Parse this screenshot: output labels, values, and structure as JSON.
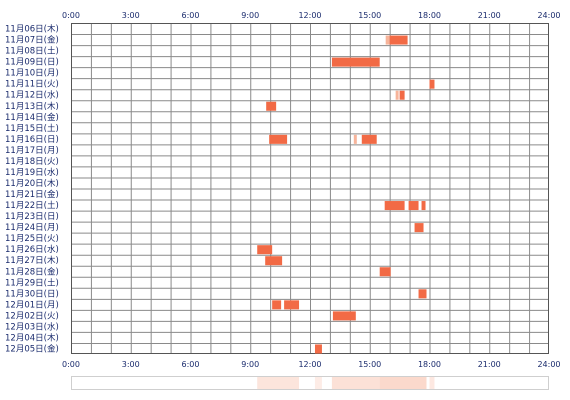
{
  "chart_data": {
    "type": "heatmap",
    "x_ticks": [
      "0:00",
      "3:00",
      "6:00",
      "9:00",
      "12:00",
      "15:00",
      "18:00",
      "21:00",
      "24:00"
    ],
    "xlim": [
      0,
      24
    ],
    "rows": [
      "11月06日(木)",
      "11月07日(金)",
      "11月08日(土)",
      "11月09日(日)",
      "11月10日(月)",
      "11月11日(火)",
      "11月12日(水)",
      "11月13日(木)",
      "11月14日(金)",
      "11月15日(土)",
      "11月16日(日)",
      "11月17日(月)",
      "11月18日(火)",
      "11月19日(水)",
      "11月20日(木)",
      "11月21日(金)",
      "11月22日(土)",
      "11月23日(日)",
      "11月24日(月)",
      "11月25日(火)",
      "11月26日(水)",
      "11月27日(木)",
      "11月28日(金)",
      "11月29日(土)",
      "11月30日(日)",
      "12月01日(月)",
      "12月02日(火)",
      "12月03日(水)",
      "12月04日(木)",
      "12月05日(金)"
    ],
    "grid": true,
    "segments": [
      {
        "row": 1,
        "start": 15.8,
        "end": 16.0,
        "color": "#f7b49a"
      },
      {
        "row": 1,
        "start": 16.0,
        "end": 16.9,
        "color": "#f26a45"
      },
      {
        "row": 3,
        "start": 13.1,
        "end": 15.5,
        "color": "#f26a45"
      },
      {
        "row": 5,
        "start": 18.0,
        "end": 18.25,
        "color": "#f26a45"
      },
      {
        "row": 6,
        "start": 16.3,
        "end": 16.45,
        "color": "#f7b49a"
      },
      {
        "row": 6,
        "start": 16.5,
        "end": 16.75,
        "color": "#f26a45"
      },
      {
        "row": 7,
        "start": 9.8,
        "end": 10.3,
        "color": "#f26a45"
      },
      {
        "row": 10,
        "start": 9.95,
        "end": 10.85,
        "color": "#f26a45"
      },
      {
        "row": 10,
        "start": 14.2,
        "end": 14.35,
        "color": "#f7b49a"
      },
      {
        "row": 10,
        "start": 14.6,
        "end": 15.35,
        "color": "#f26a45"
      },
      {
        "row": 16,
        "start": 15.75,
        "end": 16.75,
        "color": "#f26a45"
      },
      {
        "row": 16,
        "start": 16.95,
        "end": 17.45,
        "color": "#f26a45"
      },
      {
        "row": 16,
        "start": 17.6,
        "end": 17.8,
        "color": "#f26a45"
      },
      {
        "row": 18,
        "start": 17.25,
        "end": 17.7,
        "color": "#f26a45"
      },
      {
        "row": 20,
        "start": 9.35,
        "end": 10.1,
        "color": "#f26a45"
      },
      {
        "row": 21,
        "start": 9.75,
        "end": 10.6,
        "color": "#f26a45"
      },
      {
        "row": 22,
        "start": 15.5,
        "end": 16.05,
        "color": "#f26a45"
      },
      {
        "row": 24,
        "start": 17.45,
        "end": 17.85,
        "color": "#f26a45"
      },
      {
        "row": 25,
        "start": 10.1,
        "end": 10.55,
        "color": "#f26a45"
      },
      {
        "row": 25,
        "start": 10.7,
        "end": 11.45,
        "color": "#f26a45"
      },
      {
        "row": 26,
        "start": 13.15,
        "end": 14.3,
        "color": "#f26a45"
      },
      {
        "row": 29,
        "start": 12.25,
        "end": 12.6,
        "color": "#f26a45"
      }
    ],
    "summary_bar": [
      {
        "start": 9.35,
        "end": 11.45,
        "level": 0.35
      },
      {
        "start": 12.25,
        "end": 12.6,
        "level": 0.25
      },
      {
        "start": 13.1,
        "end": 15.5,
        "level": 0.4
      },
      {
        "start": 15.5,
        "end": 17.85,
        "level": 0.5
      },
      {
        "start": 18.0,
        "end": 18.25,
        "level": 0.3
      }
    ],
    "colors": {
      "plot_border": "#555555",
      "grid_line": "#8a8a8a",
      "segment": "#f26a45",
      "segment_light": "#f7b49a",
      "label_text": "#1a2b6d",
      "summary_fill": "#f7b49a"
    }
  }
}
